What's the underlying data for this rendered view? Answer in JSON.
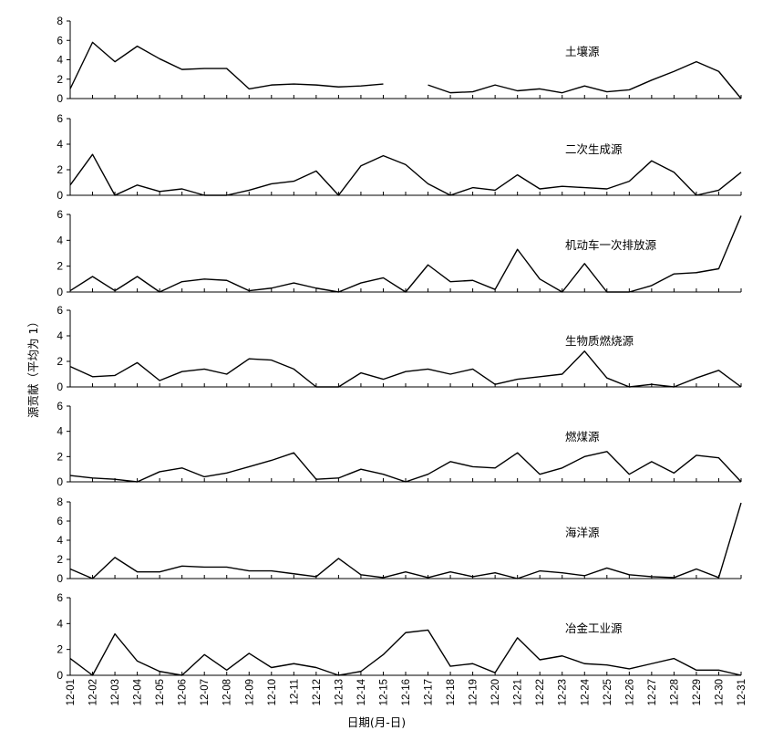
{
  "chart_data": {
    "type": "line",
    "layout": "stacked-panels",
    "xlabel": "日期(月-日)",
    "ylabel": "源贡献（平均为 1）",
    "x": [
      "12-01",
      "12-02",
      "12-03",
      "12-04",
      "12-05",
      "12-06",
      "12-07",
      "12-08",
      "12-09",
      "12-10",
      "12-11",
      "12-12",
      "12-13",
      "12-14",
      "12-15",
      "12-16",
      "12-17",
      "12-18",
      "12-19",
      "12-20",
      "12-21",
      "12-22",
      "12-23",
      "12-24",
      "12-25",
      "12-26",
      "12-27",
      "12-28",
      "12-29",
      "12-30",
      "12-31"
    ],
    "grid": false,
    "legend": "none",
    "panels": [
      {
        "name": "土壤源",
        "ylim": [
          0,
          8
        ],
        "yticks": [
          0,
          2,
          4,
          6,
          8
        ],
        "values": [
          1.0,
          5.8,
          3.8,
          5.4,
          4.1,
          3.0,
          3.1,
          3.1,
          1.0,
          1.4,
          1.5,
          1.4,
          1.2,
          1.3,
          1.5,
          null,
          1.4,
          0.6,
          0.7,
          1.4,
          0.8,
          1.0,
          0.6,
          1.3,
          0.7,
          0.9,
          1.9,
          2.8,
          3.8,
          2.8,
          0.0
        ]
      },
      {
        "name": "二次生成源",
        "ylim": [
          0,
          6
        ],
        "yticks": [
          0,
          2,
          4,
          6
        ],
        "values": [
          0.8,
          3.2,
          0.0,
          0.8,
          0.3,
          0.5,
          0.0,
          0.0,
          0.4,
          0.9,
          1.1,
          1.9,
          0.0,
          2.3,
          3.1,
          2.4,
          0.9,
          0.0,
          0.6,
          0.4,
          1.6,
          0.5,
          0.7,
          0.6,
          0.5,
          1.1,
          2.7,
          1.8,
          0.0,
          0.4,
          1.8
        ]
      },
      {
        "name": "机动车一次排放源",
        "ylim": [
          0,
          6
        ],
        "yticks": [
          0,
          2,
          4,
          6
        ],
        "values": [
          0.1,
          1.2,
          0.1,
          1.2,
          0.0,
          0.8,
          1.0,
          0.9,
          0.1,
          0.3,
          0.7,
          0.3,
          0.0,
          0.7,
          1.1,
          0.0,
          2.1,
          0.8,
          0.9,
          0.2,
          3.3,
          1.0,
          0.0,
          2.2,
          0.0,
          0.0,
          0.5,
          1.4,
          1.5,
          1.8,
          5.9
        ]
      },
      {
        "name": "生物质燃烧源",
        "ylim": [
          0,
          6
        ],
        "yticks": [
          0,
          2,
          4,
          6
        ],
        "values": [
          1.6,
          0.8,
          0.9,
          1.9,
          0.5,
          1.2,
          1.4,
          1.0,
          2.2,
          2.1,
          1.4,
          0.0,
          0.0,
          1.1,
          0.6,
          1.2,
          1.4,
          1.0,
          1.4,
          0.2,
          0.6,
          0.8,
          1.0,
          2.8,
          0.7,
          0.0,
          0.2,
          0.0,
          0.7,
          1.3,
          0.0
        ]
      },
      {
        "name": "燃煤源",
        "ylim": [
          0,
          6
        ],
        "yticks": [
          0,
          2,
          4,
          6
        ],
        "values": [
          0.5,
          0.3,
          0.2,
          0.0,
          0.8,
          1.1,
          0.4,
          0.7,
          1.2,
          1.7,
          2.3,
          0.2,
          0.3,
          1.0,
          0.6,
          0.0,
          0.6,
          1.6,
          1.2,
          1.1,
          2.3,
          0.6,
          1.1,
          2.0,
          2.4,
          0.6,
          1.6,
          0.7,
          2.1,
          1.9,
          0.0
        ]
      },
      {
        "name": "海洋源",
        "ylim": [
          0,
          8
        ],
        "yticks": [
          0,
          2,
          4,
          6,
          8
        ],
        "values": [
          1.0,
          0.0,
          2.2,
          0.7,
          0.7,
          1.3,
          1.2,
          1.2,
          0.8,
          0.8,
          0.5,
          0.2,
          2.1,
          0.4,
          0.1,
          0.7,
          0.1,
          0.7,
          0.2,
          0.6,
          0.0,
          0.8,
          0.6,
          0.3,
          1.1,
          0.4,
          0.2,
          0.1,
          1.0,
          0.1,
          7.9
        ]
      },
      {
        "name": "冶金工业源",
        "ylim": [
          0,
          6
        ],
        "yticks": [
          0,
          2,
          4,
          6
        ],
        "values": [
          1.3,
          0.0,
          3.2,
          1.1,
          0.3,
          0.0,
          1.6,
          0.4,
          1.7,
          0.6,
          0.9,
          0.6,
          0.0,
          0.3,
          1.6,
          3.3,
          3.5,
          0.7,
          0.9,
          0.2,
          2.9,
          1.2,
          1.5,
          0.9,
          0.8,
          0.5,
          0.9,
          1.3,
          0.4,
          0.4,
          0.0
        ]
      }
    ]
  }
}
